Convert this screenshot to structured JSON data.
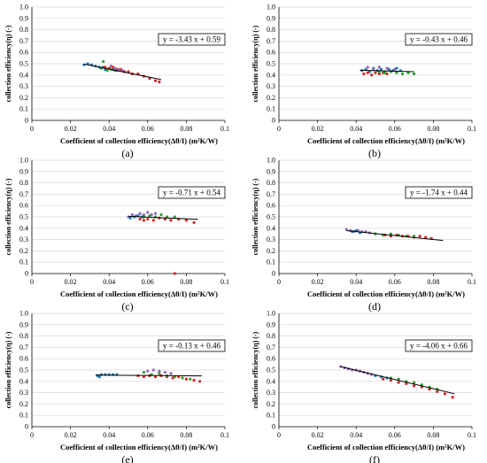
{
  "chart_data": [
    {
      "type": "scatter",
      "caption": "(a)",
      "equation": "y = -3.43 x + 0.59",
      "xlabel": "Coefficient of collection efficiency(Δθ/I) (m²K/W)",
      "ylabel": "collection efficiency(η) (-)",
      "xlim": [
        0,
        0.1
      ],
      "ylim": [
        0,
        1.0
      ],
      "xticks": [
        "0",
        "0.02",
        "0.04",
        "0.06",
        "0.08",
        "0.1"
      ],
      "yticks": [
        "0",
        "0.1",
        "0.2",
        "0.3",
        "0.4",
        "0.5",
        "0.6",
        "0.7",
        "0.8",
        "0.9",
        "1.0"
      ],
      "fit": {
        "slope": -3.43,
        "intercept": 0.59,
        "x": [
          0.027,
          0.067
        ]
      },
      "series": [
        {
          "color": "#1f77b4",
          "values": [
            [
              0.027,
              0.49
            ],
            [
              0.029,
              0.5
            ],
            [
              0.031,
              0.49
            ],
            [
              0.033,
              0.48
            ],
            [
              0.035,
              0.47
            ],
            [
              0.037,
              0.47
            ],
            [
              0.038,
              0.45
            ],
            [
              0.04,
              0.46
            ],
            [
              0.042,
              0.45
            ],
            [
              0.044,
              0.44
            ]
          ]
        },
        {
          "color": "#d62728",
          "values": [
            [
              0.038,
              0.47
            ],
            [
              0.04,
              0.46
            ],
            [
              0.042,
              0.47
            ],
            [
              0.044,
              0.45
            ],
            [
              0.046,
              0.45
            ],
            [
              0.048,
              0.43
            ],
            [
              0.05,
              0.43
            ],
            [
              0.052,
              0.41
            ],
            [
              0.055,
              0.41
            ],
            [
              0.058,
              0.39
            ],
            [
              0.061,
              0.37
            ],
            [
              0.064,
              0.35
            ],
            [
              0.066,
              0.34
            ]
          ]
        },
        {
          "color": "#2ca02c",
          "values": [
            [
              0.036,
              0.46
            ],
            [
              0.037,
              0.52
            ],
            [
              0.039,
              0.44
            ],
            [
              0.041,
              0.45
            ],
            [
              0.043,
              0.44
            ]
          ]
        },
        {
          "color": "#9467bd",
          "values": [
            [
              0.041,
              0.48
            ],
            [
              0.043,
              0.46
            ],
            [
              0.045,
              0.45
            ],
            [
              0.047,
              0.44
            ]
          ]
        }
      ]
    },
    {
      "type": "scatter",
      "caption": "(b)",
      "equation": "y = -0.43 x + 0.46",
      "xlabel": "Coefficient of collection efficiency(Δθ/I) (m²K/W)",
      "ylabel": "collection efficiency(η) (-)",
      "xlim": [
        0,
        0.1
      ],
      "ylim": [
        0,
        1.0
      ],
      "xticks": [
        "0",
        "0.02",
        "0.04",
        "0.06",
        "0.08",
        "0.1"
      ],
      "yticks": [
        "0",
        "0.1",
        "0.2",
        "0.3",
        "0.4",
        "0.5",
        "0.6",
        "0.7",
        "0.8",
        "0.9",
        "1.0"
      ],
      "fit": {
        "slope": -0.43,
        "intercept": 0.46,
        "x": [
          0.042,
          0.07
        ]
      },
      "series": [
        {
          "color": "#1f77b4",
          "values": [
            [
              0.043,
              0.44
            ],
            [
              0.045,
              0.45
            ],
            [
              0.047,
              0.43
            ],
            [
              0.049,
              0.46
            ],
            [
              0.051,
              0.44
            ],
            [
              0.053,
              0.45
            ],
            [
              0.055,
              0.43
            ],
            [
              0.057,
              0.45
            ],
            [
              0.059,
              0.44
            ],
            [
              0.061,
              0.46
            ],
            [
              0.063,
              0.44
            ]
          ]
        },
        {
          "color": "#d62728",
          "values": [
            [
              0.044,
              0.41
            ],
            [
              0.046,
              0.42
            ],
            [
              0.048,
              0.4
            ],
            [
              0.05,
              0.42
            ],
            [
              0.052,
              0.41
            ],
            [
              0.054,
              0.42
            ],
            [
              0.056,
              0.41
            ]
          ]
        },
        {
          "color": "#2ca02c",
          "values": [
            [
              0.052,
              0.43
            ],
            [
              0.055,
              0.42
            ],
            [
              0.058,
              0.43
            ],
            [
              0.061,
              0.42
            ],
            [
              0.064,
              0.41
            ],
            [
              0.067,
              0.42
            ],
            [
              0.07,
              0.41
            ]
          ]
        },
        {
          "color": "#9467bd",
          "values": [
            [
              0.046,
              0.47
            ],
            [
              0.049,
              0.45
            ],
            [
              0.052,
              0.47
            ],
            [
              0.056,
              0.46
            ],
            [
              0.06,
              0.45
            ]
          ]
        }
      ]
    },
    {
      "type": "scatter",
      "caption": "(c)",
      "equation": "y = -0.71 x + 0.54",
      "xlabel": "Coefficient of collection efficiency(Δθ/I) (m²K/W)",
      "ylabel": "collection efficiency(η) (-)",
      "xlim": [
        0,
        0.1
      ],
      "ylim": [
        0,
        1.0
      ],
      "xticks": [
        "0",
        "0.02",
        "0.04",
        "0.06",
        "0.08",
        "0.1"
      ],
      "yticks": [
        "0",
        "0.1",
        "0.2",
        "0.3",
        "0.4",
        "0.5",
        "0.6",
        "0.7",
        "0.8",
        "0.9",
        "1.0"
      ],
      "fit": {
        "slope": -0.71,
        "intercept": 0.54,
        "x": [
          0.05,
          0.086
        ]
      },
      "series": [
        {
          "color": "#9467bd",
          "values": [
            [
              0.05,
              0.5
            ],
            [
              0.052,
              0.52
            ],
            [
              0.054,
              0.51
            ],
            [
              0.056,
              0.53
            ],
            [
              0.058,
              0.52
            ],
            [
              0.06,
              0.54
            ],
            [
              0.062,
              0.52
            ],
            [
              0.064,
              0.53
            ]
          ]
        },
        {
          "color": "#d62728",
          "values": [
            [
              0.056,
              0.48
            ],
            [
              0.058,
              0.47
            ],
            [
              0.06,
              0.48
            ],
            [
              0.063,
              0.47
            ],
            [
              0.066,
              0.49
            ],
            [
              0.069,
              0.48
            ],
            [
              0.072,
              0.47
            ],
            [
              0.076,
              0.48
            ],
            [
              0.08,
              0.47
            ],
            [
              0.084,
              0.45
            ],
            [
              0.074,
              0.0
            ]
          ]
        },
        {
          "color": "#2ca02c",
          "values": [
            [
              0.058,
              0.5
            ],
            [
              0.061,
              0.51
            ],
            [
              0.064,
              0.5
            ],
            [
              0.067,
              0.52
            ],
            [
              0.07,
              0.5
            ],
            [
              0.074,
              0.5
            ]
          ]
        },
        {
          "color": "#1f77b4",
          "values": [
            [
              0.051,
              0.49
            ],
            [
              0.053,
              0.5
            ],
            [
              0.055,
              0.51
            ],
            [
              0.057,
              0.5
            ]
          ]
        }
      ]
    },
    {
      "type": "scatter",
      "caption": "(d)",
      "equation": "y = -1.74 x + 0.44",
      "xlabel": "Coefficient of collection efficiency(Δθ/I) (m²K/W)",
      "ylabel": "collection efficiency(η) (-)",
      "xlim": [
        0,
        0.1
      ],
      "ylim": [
        0,
        1.0
      ],
      "xticks": [
        "0",
        "0.02",
        "0.04",
        "0.06",
        "0.08",
        "0.1"
      ],
      "yticks": [
        "0",
        "0.1",
        "0.2",
        "0.3",
        "0.4",
        "0.5",
        "0.6",
        "0.7",
        "0.8",
        "0.9",
        "1.0"
      ],
      "fit": {
        "slope": -1.74,
        "intercept": 0.44,
        "x": [
          0.035,
          0.085
        ]
      },
      "series": [
        {
          "color": "#9467bd",
          "values": [
            [
              0.035,
              0.39
            ],
            [
              0.037,
              0.38
            ],
            [
              0.039,
              0.37
            ],
            [
              0.041,
              0.38
            ],
            [
              0.043,
              0.37
            ],
            [
              0.045,
              0.37
            ],
            [
              0.047,
              0.36
            ]
          ]
        },
        {
          "color": "#d62728",
          "values": [
            [
              0.055,
              0.34
            ],
            [
              0.058,
              0.33
            ],
            [
              0.061,
              0.34
            ],
            [
              0.064,
              0.33
            ],
            [
              0.067,
              0.33
            ],
            [
              0.07,
              0.32
            ],
            [
              0.073,
              0.33
            ],
            [
              0.076,
              0.32
            ],
            [
              0.079,
              0.31
            ]
          ]
        },
        {
          "color": "#2ca02c",
          "values": [
            [
              0.05,
              0.35
            ],
            [
              0.054,
              0.34
            ],
            [
              0.058,
              0.35
            ],
            [
              0.062,
              0.34
            ],
            [
              0.066,
              0.33
            ],
            [
              0.07,
              0.33
            ]
          ]
        },
        {
          "color": "#1f77b4",
          "values": [
            [
              0.038,
              0.37
            ],
            [
              0.04,
              0.38
            ],
            [
              0.042,
              0.36
            ]
          ]
        }
      ]
    },
    {
      "type": "scatter",
      "caption": "(e)",
      "equation": "y = -0.13 x + 0.46",
      "xlabel": "Coefficient of collection efficiency(Δθ/I) (m²K/W)",
      "ylabel": "collection efficiency(η) (-)",
      "xlim": [
        0,
        0.1
      ],
      "ylim": [
        0,
        1.0
      ],
      "xticks": [
        "0",
        "0.02",
        "0.04",
        "0.06",
        "0.08",
        "0.1"
      ],
      "yticks": [
        "0",
        "0.1",
        "0.2",
        "0.3",
        "0.4",
        "0.5",
        "0.6",
        "0.7",
        "0.8",
        "0.9",
        "1.0"
      ],
      "fit": {
        "slope": -0.13,
        "intercept": 0.46,
        "x": [
          0.033,
          0.088
        ]
      },
      "series": [
        {
          "color": "#1f77b4",
          "values": [
            [
              0.034,
              0.45
            ],
            [
              0.035,
              0.44
            ],
            [
              0.036,
              0.46
            ],
            [
              0.038,
              0.46
            ],
            [
              0.04,
              0.46
            ],
            [
              0.042,
              0.46
            ],
            [
              0.044,
              0.46
            ]
          ]
        },
        {
          "color": "#d62728",
          "values": [
            [
              0.055,
              0.45
            ],
            [
              0.058,
              0.44
            ],
            [
              0.061,
              0.45
            ],
            [
              0.064,
              0.44
            ],
            [
              0.067,
              0.45
            ],
            [
              0.07,
              0.44
            ],
            [
              0.073,
              0.43
            ],
            [
              0.076,
              0.44
            ],
            [
              0.08,
              0.42
            ],
            [
              0.084,
              0.41
            ],
            [
              0.087,
              0.4
            ]
          ]
        },
        {
          "color": "#2ca02c",
          "values": [
            [
              0.058,
              0.48
            ],
            [
              0.062,
              0.46
            ],
            [
              0.066,
              0.47
            ],
            [
              0.07,
              0.45
            ],
            [
              0.074,
              0.44
            ],
            [
              0.078,
              0.43
            ],
            [
              0.082,
              0.42
            ]
          ]
        },
        {
          "color": "#9467bd",
          "values": [
            [
              0.06,
              0.49
            ],
            [
              0.063,
              0.5
            ],
            [
              0.066,
              0.49
            ],
            [
              0.069,
              0.48
            ],
            [
              0.072,
              0.47
            ]
          ]
        }
      ]
    },
    {
      "type": "scatter",
      "caption": "(f)",
      "equation": "y = -4.06 x + 0.66",
      "xlabel": "Coefficient of collection efficiency(Δθ/I) (m²K/W)",
      "ylabel": "collection efficiency(η) (-)",
      "xlim": [
        0,
        0.1
      ],
      "ylim": [
        0,
        1.0
      ],
      "xticks": [
        "0",
        "0.02",
        "0.04",
        "0.06",
        "0.08",
        "0.1"
      ],
      "yticks": [
        "0",
        "0.1",
        "0.2",
        "0.3",
        "0.4",
        "0.5",
        "0.6",
        "0.7",
        "0.8",
        "0.9",
        "1.0"
      ],
      "fit": {
        "slope": -4.06,
        "intercept": 0.66,
        "x": [
          0.032,
          0.091
        ]
      },
      "series": [
        {
          "color": "#9467bd",
          "values": [
            [
              0.032,
              0.53
            ],
            [
              0.034,
              0.52
            ],
            [
              0.036,
              0.51
            ],
            [
              0.038,
              0.5
            ],
            [
              0.04,
              0.5
            ],
            [
              0.042,
              0.49
            ],
            [
              0.044,
              0.48
            ],
            [
              0.046,
              0.47
            ],
            [
              0.048,
              0.46
            ]
          ]
        },
        {
          "color": "#d62728",
          "values": [
            [
              0.054,
              0.42
            ],
            [
              0.058,
              0.41
            ],
            [
              0.062,
              0.39
            ],
            [
              0.066,
              0.38
            ],
            [
              0.07,
              0.36
            ],
            [
              0.074,
              0.35
            ],
            [
              0.078,
              0.33
            ],
            [
              0.082,
              0.31
            ],
            [
              0.086,
              0.29
            ],
            [
              0.09,
              0.26
            ]
          ]
        },
        {
          "color": "#2ca02c",
          "values": [
            [
              0.058,
              0.43
            ],
            [
              0.062,
              0.42
            ],
            [
              0.066,
              0.4
            ],
            [
              0.07,
              0.39
            ],
            [
              0.074,
              0.37
            ],
            [
              0.078,
              0.35
            ],
            [
              0.082,
              0.33
            ]
          ]
        },
        {
          "color": "#1f77b4",
          "values": [
            [
              0.05,
              0.45
            ],
            [
              0.053,
              0.44
            ],
            [
              0.056,
              0.43
            ]
          ]
        }
      ]
    }
  ]
}
